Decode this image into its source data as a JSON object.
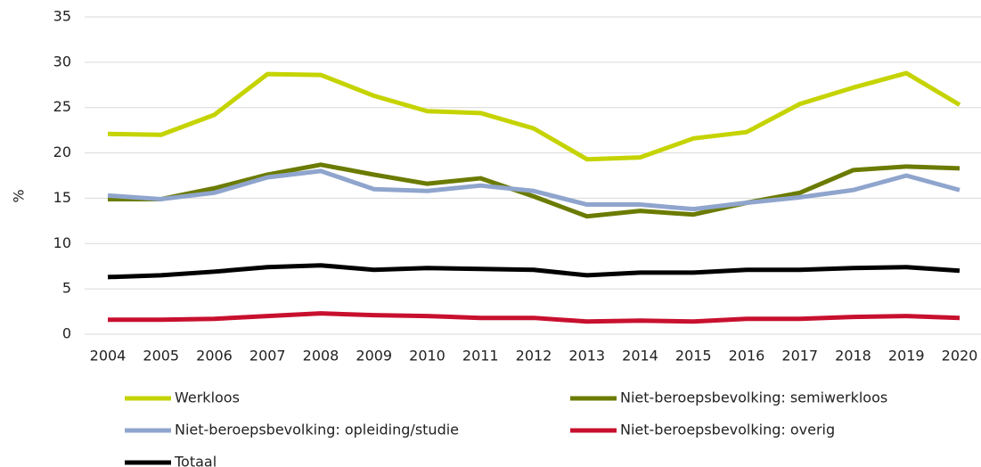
{
  "chart_data": {
    "type": "line",
    "y_label": "%",
    "categories": [
      "2004",
      "2005",
      "2006",
      "2007",
      "2008",
      "2009",
      "2010",
      "2011",
      "2012",
      "2013",
      "2014",
      "2015",
      "2016",
      "2017",
      "2018",
      "2019",
      "2020"
    ],
    "series": [
      {
        "name": "Werkloos",
        "color": "#c5d300",
        "values": [
          22.1,
          22.0,
          24.2,
          28.7,
          28.6,
          26.3,
          24.6,
          24.4,
          22.7,
          19.3,
          19.5,
          21.6,
          22.3,
          25.4,
          27.2,
          28.8,
          25.3
        ]
      },
      {
        "name": "Niet-beroepsbevolking: semiwerkloos",
        "color": "#6b7b00",
        "values": [
          14.9,
          14.9,
          16.1,
          17.6,
          18.7,
          17.6,
          16.6,
          17.2,
          15.2,
          13.0,
          13.6,
          13.2,
          14.5,
          15.6,
          18.1,
          18.5,
          18.3
        ]
      },
      {
        "name": "Niet-beroepsbevolking: opleiding/studie",
        "color": "#8fa5cd",
        "values": [
          15.3,
          14.9,
          15.6,
          17.3,
          18.0,
          16.0,
          15.8,
          16.4,
          15.8,
          14.3,
          14.3,
          13.8,
          14.5,
          15.1,
          15.9,
          17.5,
          15.9
        ]
      },
      {
        "name": "Niet-beroepsbevolking: overig",
        "color": "#c8102e",
        "values": [
          1.6,
          1.6,
          1.7,
          2.0,
          2.3,
          2.1,
          2.0,
          1.8,
          1.8,
          1.4,
          1.5,
          1.4,
          1.7,
          1.7,
          1.9,
          2.0,
          1.8
        ]
      },
      {
        "name": "Totaal",
        "color": "#000000",
        "values": [
          6.3,
          6.5,
          6.9,
          7.4,
          7.6,
          7.1,
          7.3,
          7.2,
          7.1,
          6.5,
          6.8,
          6.8,
          7.1,
          7.1,
          7.3,
          7.4,
          7.0
        ]
      }
    ],
    "ylim": [
      0,
      35
    ],
    "yticks": [
      0,
      5,
      10,
      15,
      20,
      25,
      30,
      35
    ],
    "grid": true,
    "legend": "bottom"
  }
}
